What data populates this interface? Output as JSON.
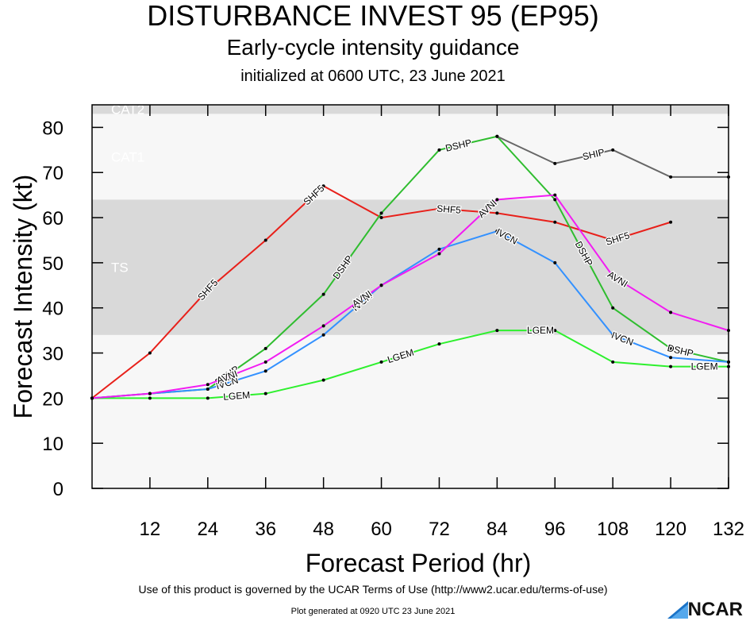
{
  "header": {
    "title": "DISTURBANCE INVEST 95 (EP95)",
    "subtitle": "Early-cycle intensity guidance",
    "initialized": "initialized at 0600 UTC, 23 June 2021"
  },
  "footer": {
    "terms": "Use of this product is governed by the UCAR Terms of Use (http://www2.ucar.edu/terms-of-use)",
    "generated": "Plot generated at 0920 UTC   23 June 2021",
    "logo_text": "NCAR"
  },
  "chart_data": {
    "type": "line",
    "xlabel": "Forecast Period (hr)",
    "ylabel": "Forecast Intensity (kt)",
    "xlim": [
      0,
      132
    ],
    "ylim": [
      0,
      85
    ],
    "xticks": [
      12,
      24,
      36,
      48,
      60,
      72,
      84,
      96,
      108,
      120,
      132
    ],
    "yticks": [
      0,
      10,
      20,
      30,
      40,
      50,
      60,
      70,
      80
    ],
    "bands": [
      {
        "name": "TS",
        "from": 34,
        "to": 64,
        "color": "#d9d9d9"
      },
      {
        "name": "CAT1",
        "from": 64,
        "to": 83,
        "color": "#f7f7f7"
      },
      {
        "name": "CAT2",
        "from": 83,
        "to": 96,
        "color": "#d9d9d9"
      }
    ],
    "below_band_color": "#f7f7f7",
    "series": [
      {
        "name": "SHF5",
        "color": "#e8201a",
        "x": [
          0,
          12,
          24,
          36,
          48,
          60,
          72,
          84,
          96,
          108,
          120
        ],
        "values": [
          20,
          30,
          44,
          55,
          67,
          60,
          62,
          61,
          59,
          55,
          59
        ],
        "label_x": [
          24,
          46,
          74,
          109
        ]
      },
      {
        "name": "DSHP",
        "color": "#2fbd2f",
        "x": [
          0,
          12,
          24,
          36,
          48,
          60,
          72,
          84,
          96,
          108,
          120,
          132
        ],
        "values": [
          20,
          21,
          22,
          31,
          43,
          61,
          75,
          78,
          64,
          40,
          31,
          28
        ],
        "label_x": [
          28,
          52,
          76,
          102,
          122
        ]
      },
      {
        "name": "SHIP",
        "color": "#666666",
        "x": [
          84,
          96,
          108,
          120,
          132
        ],
        "values": [
          78,
          72,
          75,
          69,
          69
        ],
        "label_x": [
          104
        ]
      },
      {
        "name": "LGEM",
        "color": "#2ef02e",
        "x": [
          0,
          12,
          24,
          36,
          48,
          60,
          72,
          84,
          96,
          108,
          120,
          132
        ],
        "values": [
          20,
          20,
          20,
          21,
          24,
          28,
          32,
          35,
          35,
          28,
          27,
          27
        ],
        "label_x": [
          30,
          64,
          93,
          127
        ]
      },
      {
        "name": "IVCN",
        "color": "#3391ff",
        "x": [
          0,
          12,
          24,
          36,
          48,
          60,
          72,
          84,
          96,
          108,
          120,
          132
        ],
        "values": [
          20,
          21,
          22,
          26,
          34,
          45,
          53,
          57,
          50,
          34,
          29,
          28
        ],
        "label_x": [
          28,
          56,
          86,
          110
        ]
      },
      {
        "name": "AVNI",
        "color": "#f21cf2",
        "x": [
          0,
          12,
          24,
          36,
          48,
          60,
          72,
          84,
          96,
          108,
          120,
          132
        ],
        "values": [
          20,
          21,
          23,
          28,
          36,
          45,
          52,
          64,
          65,
          47,
          39,
          35
        ],
        "label_x": [
          28,
          56,
          82,
          109
        ]
      }
    ]
  }
}
